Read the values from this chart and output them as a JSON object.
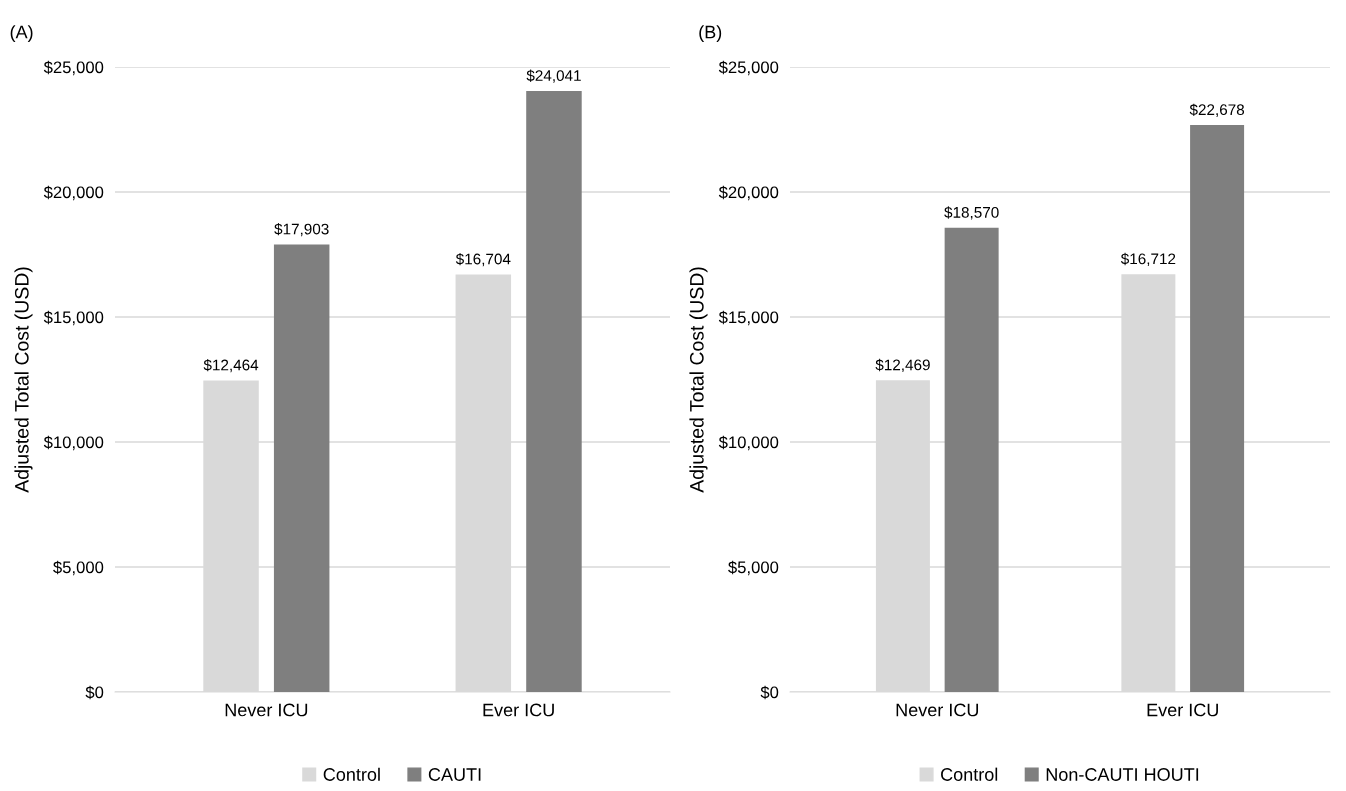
{
  "chart_data": [
    {
      "type": "bar",
      "title": "(A)",
      "ylabel": "Adjusted Total Cost (USD)",
      "categories": [
        "Never ICU",
        "Ever ICU"
      ],
      "series": [
        {
          "name": "Control",
          "color": "#d9d9d9",
          "values": [
            12464,
            16704
          ],
          "value_labels": [
            "$12,464",
            "$16,704"
          ]
        },
        {
          "name": "CAUTI",
          "color": "#7f7f7f",
          "values": [
            17903,
            24041
          ],
          "value_labels": [
            "$17,903",
            "$24,041"
          ]
        }
      ],
      "ylim": [
        0,
        25000
      ],
      "yticks": [
        {
          "value": 0,
          "label": "$0"
        },
        {
          "value": 5000,
          "label": "$5,000"
        },
        {
          "value": 10000,
          "label": "$10,000"
        },
        {
          "value": 15000,
          "label": "$15,000"
        },
        {
          "value": 20000,
          "label": "$20,000"
        },
        {
          "value": 25000,
          "label": "$25,000"
        }
      ],
      "grid": "y",
      "legend": "bottom"
    },
    {
      "type": "bar",
      "title": "(B)",
      "ylabel": "Adjusted Total Cost (USD)",
      "categories": [
        "Never ICU",
        "Ever ICU"
      ],
      "series": [
        {
          "name": "Control",
          "color": "#d9d9d9",
          "values": [
            12469,
            16712
          ],
          "value_labels": [
            "$12,469",
            "$16,712"
          ]
        },
        {
          "name": "Non-CAUTI HOUTI",
          "color": "#7f7f7f",
          "values": [
            18570,
            22678
          ],
          "value_labels": [
            "$18,570",
            "$22,678"
          ]
        }
      ],
      "ylim": [
        0,
        25000
      ],
      "yticks": [
        {
          "value": 0,
          "label": "$0"
        },
        {
          "value": 5000,
          "label": "$5,000"
        },
        {
          "value": 10000,
          "label": "$10,000"
        },
        {
          "value": 15000,
          "label": "$15,000"
        },
        {
          "value": 20000,
          "label": "$20,000"
        },
        {
          "value": 25000,
          "label": "$25,000"
        }
      ],
      "grid": "y",
      "legend": "bottom"
    }
  ]
}
